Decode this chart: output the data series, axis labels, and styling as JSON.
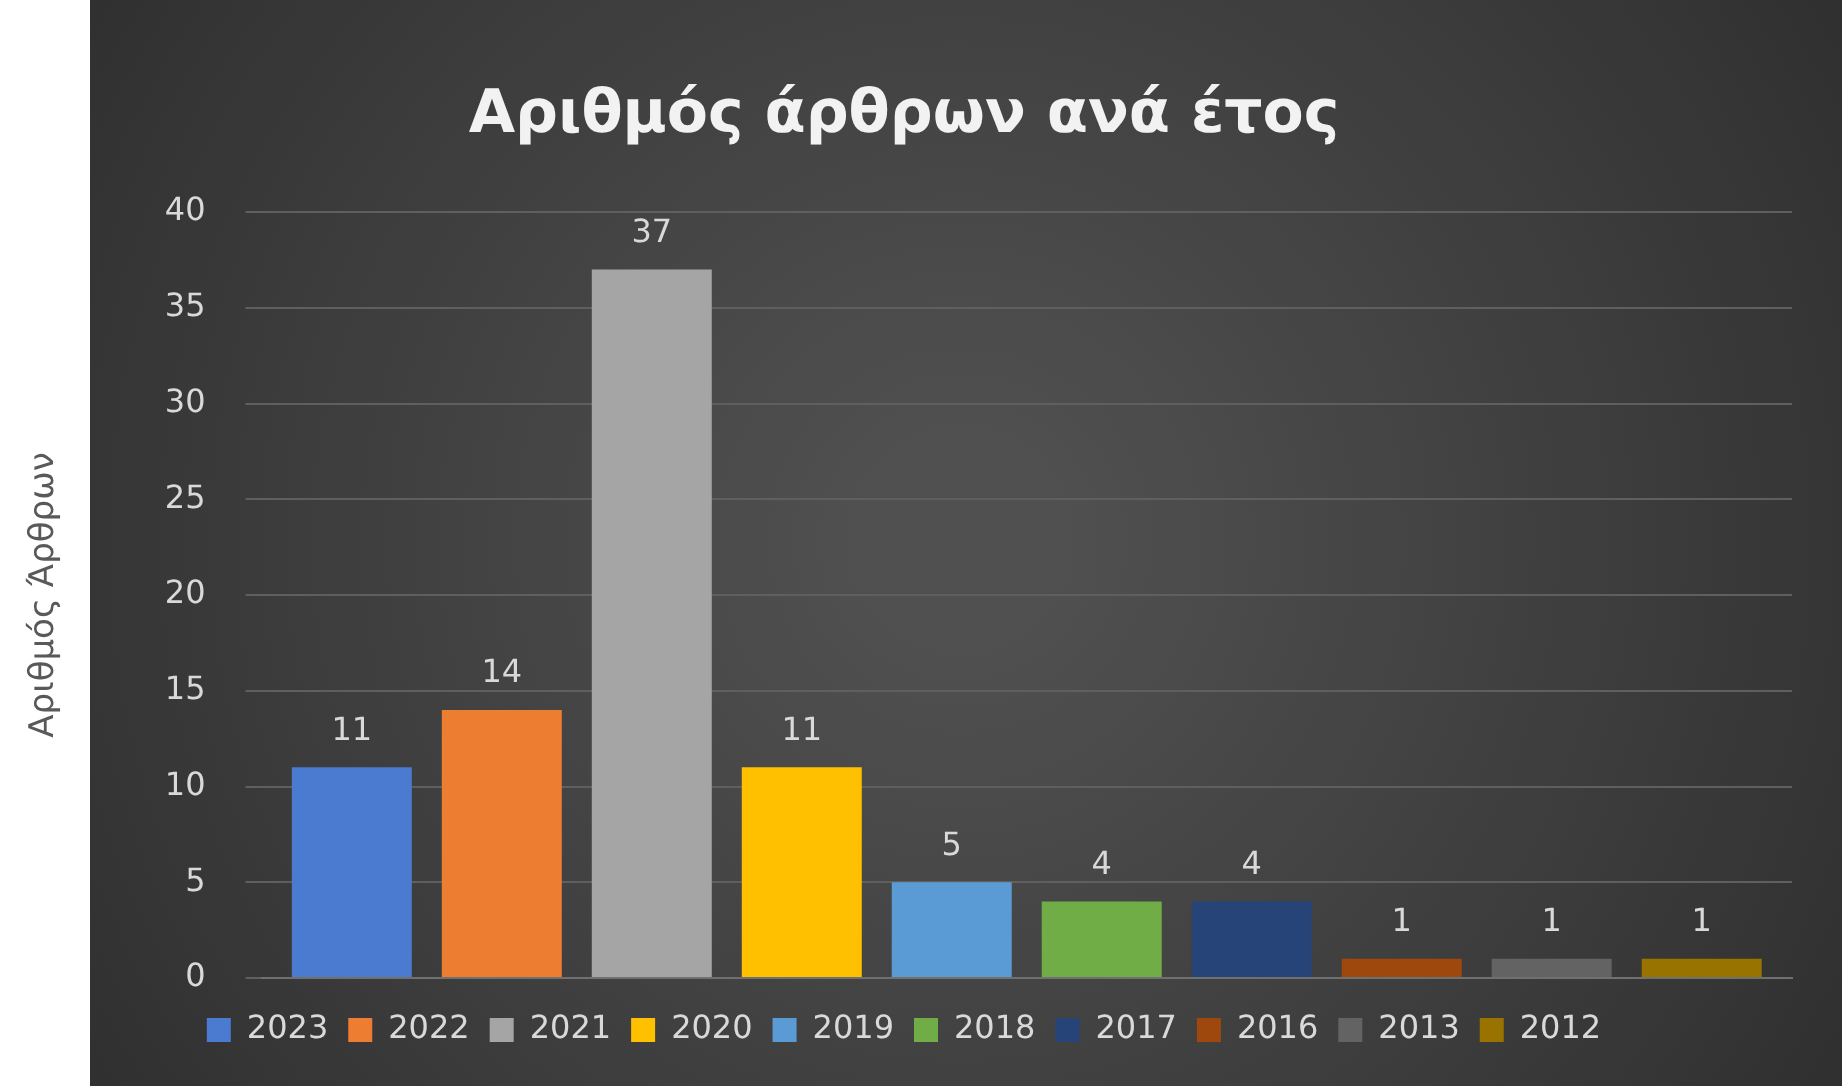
{
  "chart_data": {
    "type": "bar",
    "title": "Αριθμός άρθρων ανά έτος",
    "ylabel": "Αριθμός Άρθρων",
    "categories": [
      null
    ],
    "series": [
      {
        "name": "2023",
        "color": "#4a7bd0",
        "values": [
          11
        ]
      },
      {
        "name": "2022",
        "color": "#ed7d31",
        "values": [
          14
        ]
      },
      {
        "name": "2021",
        "color": "#a5a5a5",
        "values": [
          37
        ]
      },
      {
        "name": "2020",
        "color": "#ffc000",
        "values": [
          11
        ]
      },
      {
        "name": "2019",
        "color": "#5b9bd5",
        "values": [
          5
        ]
      },
      {
        "name": "2018",
        "color": "#70ad47",
        "values": [
          4
        ]
      },
      {
        "name": "2017",
        "color": "#264478",
        "values": [
          4
        ]
      },
      {
        "name": "2016",
        "color": "#9e480e",
        "values": [
          1
        ]
      },
      {
        "name": "2013",
        "color": "#636363",
        "values": [
          1
        ]
      },
      {
        "name": "2012",
        "color": "#997300",
        "values": [
          1
        ]
      }
    ],
    "ylim": [
      0,
      40
    ],
    "yticks": [
      0,
      5,
      10,
      15,
      20,
      25,
      30,
      35,
      40
    ],
    "grid": "y",
    "legend": "bottom",
    "data_labels": true
  }
}
